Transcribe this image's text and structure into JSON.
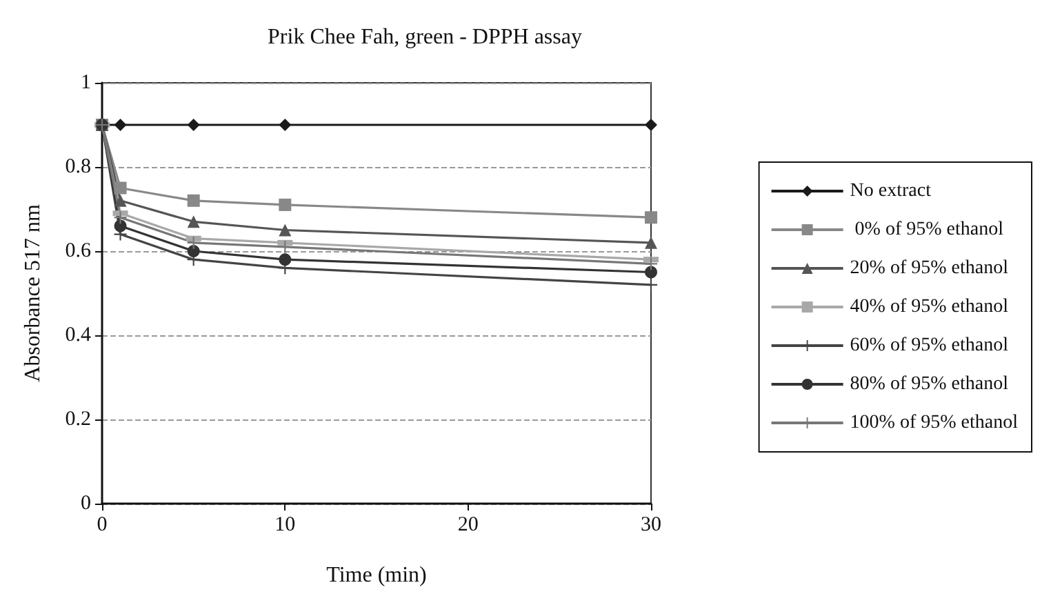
{
  "chart_data": {
    "type": "line",
    "title": "Prik Chee Fah, green - DPPH assay",
    "xlabel": "Time (min)",
    "ylabel": "Absorbance 517 nm",
    "x": [
      0,
      1,
      5,
      10,
      30
    ],
    "xlim": [
      0,
      30
    ],
    "xticks": [
      0,
      10,
      20,
      30
    ],
    "ylim": [
      0,
      1
    ],
    "yticks": [
      0,
      0.2,
      0.4,
      0.6,
      0.8,
      1
    ],
    "grid": "y",
    "legend": "right",
    "series": [
      {
        "name": "No extract",
        "color": "#1a1a1a",
        "marker": "diamond",
        "values": [
          0.9,
          0.9,
          0.9,
          0.9,
          0.9
        ]
      },
      {
        "name": " 0% of 95% ethanol",
        "color": "#888888",
        "marker": "square",
        "values": [
          0.9,
          0.75,
          0.72,
          0.71,
          0.68
        ]
      },
      {
        "name": "20% of 95% ethanol",
        "color": "#555555",
        "marker": "triangle",
        "values": [
          0.9,
          0.72,
          0.67,
          0.65,
          0.62
        ]
      },
      {
        "name": "40% of 95% ethanol",
        "color": "#a8a8a8",
        "marker": "square",
        "values": [
          0.9,
          0.69,
          0.63,
          0.62,
          0.58
        ]
      },
      {
        "name": "60% of 95% ethanol",
        "color": "#444444",
        "marker": "cross",
        "values": [
          0.9,
          0.64,
          0.58,
          0.56,
          0.52
        ]
      },
      {
        "name": "80% of 95% ethanol",
        "color": "#333333",
        "marker": "circle",
        "values": [
          0.9,
          0.66,
          0.6,
          0.58,
          0.55
        ]
      },
      {
        "name": "100% of 95% ethanol",
        "color": "#777777",
        "marker": "cross",
        "values": [
          0.9,
          0.68,
          0.62,
          0.61,
          0.57
        ]
      }
    ]
  }
}
